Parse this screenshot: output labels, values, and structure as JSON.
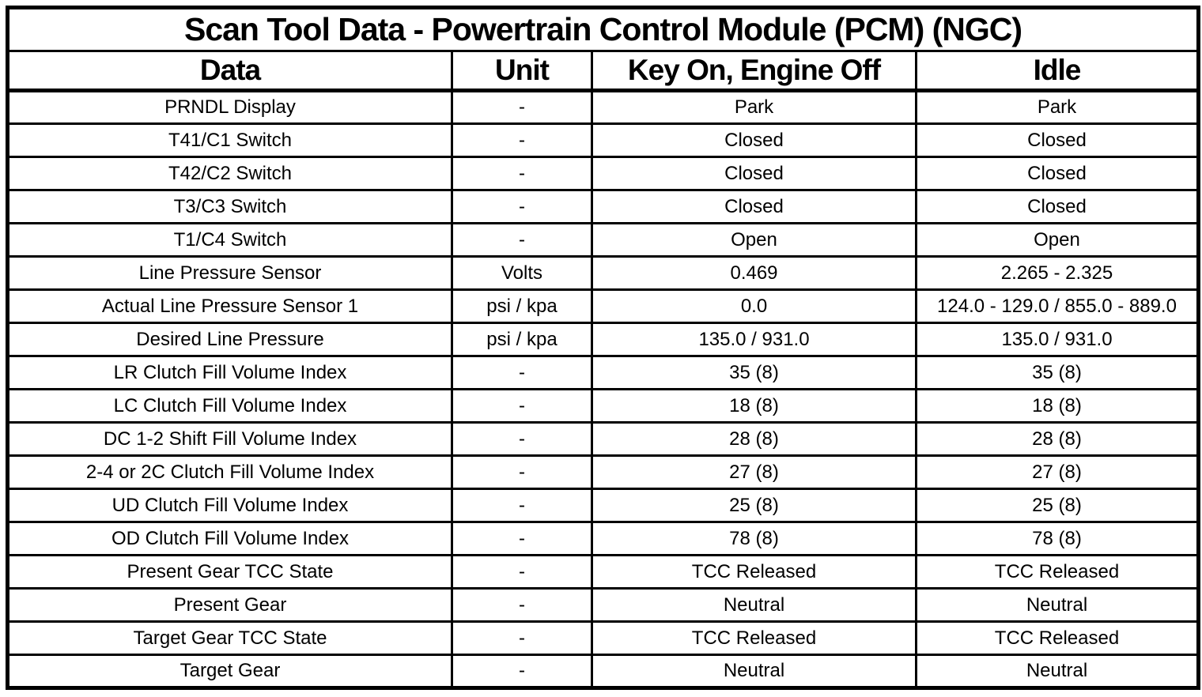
{
  "table": {
    "title": "Scan Tool Data - Powertrain Control Module (PCM) (NGC)",
    "columns": [
      "Data",
      "Unit",
      "Key On, Engine Off",
      "Idle"
    ],
    "rows": [
      [
        "PRNDL Display",
        "-",
        "Park",
        "Park"
      ],
      [
        "T41/C1 Switch",
        "-",
        "Closed",
        "Closed"
      ],
      [
        "T42/C2 Switch",
        "-",
        "Closed",
        "Closed"
      ],
      [
        "T3/C3 Switch",
        "-",
        "Closed",
        "Closed"
      ],
      [
        "T1/C4 Switch",
        "-",
        "Open",
        "Open"
      ],
      [
        "Line Pressure Sensor",
        "Volts",
        "0.469",
        "2.265 - 2.325"
      ],
      [
        "Actual Line Pressure Sensor 1",
        "psi / kpa",
        "0.0",
        "124.0 - 129.0 / 855.0 - 889.0"
      ],
      [
        "Desired Line Pressure",
        "psi / kpa",
        "135.0 / 931.0",
        "135.0 / 931.0"
      ],
      [
        "LR Clutch Fill Volume Index",
        "-",
        "35 (8)",
        "35 (8)"
      ],
      [
        "LC Clutch Fill Volume Index",
        "-",
        "18 (8)",
        "18 (8)"
      ],
      [
        "DC 1-2 Shift Fill Volume Index",
        "-",
        "28 (8)",
        "28 (8)"
      ],
      [
        "2-4 or 2C Clutch Fill Volume Index",
        "-",
        "27 (8)",
        "27 (8)"
      ],
      [
        "UD Clutch Fill Volume Index",
        "-",
        "25 (8)",
        "25 (8)"
      ],
      [
        "OD Clutch Fill Volume Index",
        "-",
        "78 (8)",
        "78 (8)"
      ],
      [
        "Present Gear TCC State",
        "-",
        "TCC Released",
        "TCC Released"
      ],
      [
        "Present Gear",
        "-",
        "Neutral",
        "Neutral"
      ],
      [
        "Target Gear TCC State",
        "-",
        "TCC Released",
        "TCC Released"
      ],
      [
        "Target Gear",
        "-",
        "Neutral",
        "Neutral"
      ]
    ],
    "colors": {
      "border": "#000000",
      "background": "#ffffff",
      "text": "#000000"
    }
  }
}
